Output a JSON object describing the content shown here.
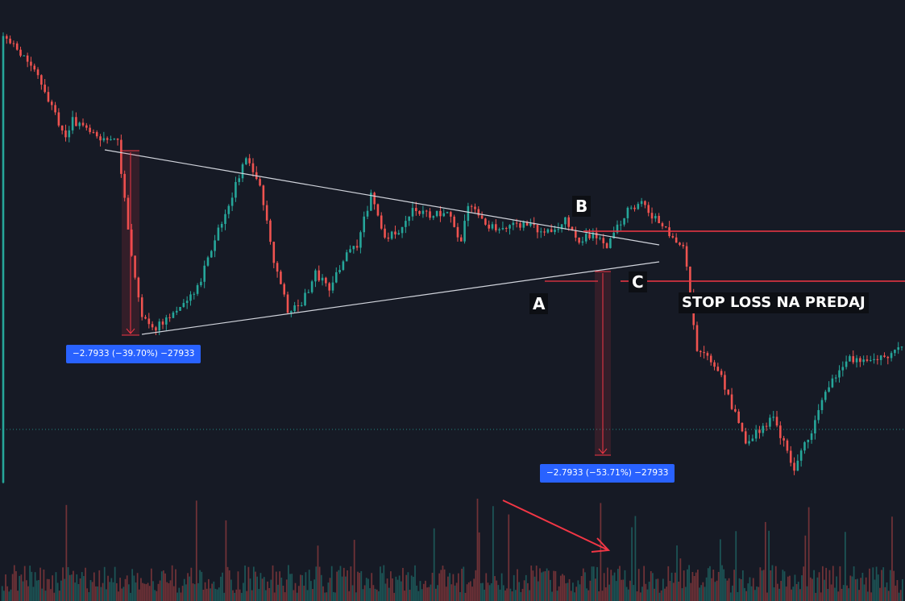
{
  "colors": {
    "background": "#161a25",
    "up": "#26a69a",
    "down": "#ef5350",
    "trendline": "#d1d4dc",
    "level": "#f23645",
    "label_bg": "#2962ff",
    "annotation_bg": "#0d0f14",
    "annotation_text": "#ffffff"
  },
  "annotations": {
    "point_a": "A",
    "point_b": "B",
    "point_c": "C",
    "stop_loss": "STOP LOSS NA PREDAJ"
  },
  "measurements": [
    {
      "text": "−2.7933 (−39.70%) −27933",
      "change": -2.7933,
      "percent": -39.7,
      "ticks": -27933
    },
    {
      "text": "−2.7933 (−53.71%) −27933",
      "change": -2.7933,
      "percent": -53.71,
      "ticks": -27933
    }
  ],
  "chart_data": {
    "type": "candlestick",
    "title": "",
    "xlabel": "",
    "ylabel": "",
    "grid": false,
    "candles": 260,
    "price_path": [
      [
        0,
        0.05
      ],
      [
        6,
        0.09
      ],
      [
        12,
        0.16
      ],
      [
        18,
        0.26
      ],
      [
        20,
        0.22
      ],
      [
        26,
        0.25
      ],
      [
        33,
        0.26
      ],
      [
        36,
        0.44
      ],
      [
        40,
        0.62
      ],
      [
        44,
        0.64
      ],
      [
        50,
        0.6
      ],
      [
        56,
        0.56
      ],
      [
        62,
        0.44
      ],
      [
        66,
        0.37
      ],
      [
        70,
        0.29
      ],
      [
        74,
        0.35
      ],
      [
        78,
        0.5
      ],
      [
        82,
        0.6
      ],
      [
        86,
        0.59
      ],
      [
        90,
        0.53
      ],
      [
        94,
        0.56
      ],
      [
        98,
        0.5
      ],
      [
        102,
        0.47
      ],
      [
        106,
        0.37
      ],
      [
        110,
        0.46
      ],
      [
        114,
        0.44
      ],
      [
        118,
        0.4
      ],
      [
        124,
        0.41
      ],
      [
        128,
        0.4
      ],
      [
        132,
        0.47
      ],
      [
        134,
        0.39
      ],
      [
        138,
        0.42
      ],
      [
        142,
        0.44
      ],
      [
        150,
        0.43
      ],
      [
        158,
        0.45
      ],
      [
        162,
        0.42
      ],
      [
        166,
        0.46
      ],
      [
        170,
        0.45
      ],
      [
        174,
        0.47
      ],
      [
        180,
        0.4
      ],
      [
        184,
        0.39
      ],
      [
        192,
        0.45
      ],
      [
        196,
        0.47
      ],
      [
        200,
        0.68
      ],
      [
        206,
        0.72
      ],
      [
        214,
        0.87
      ],
      [
        222,
        0.82
      ],
      [
        228,
        0.92
      ],
      [
        234,
        0.83
      ],
      [
        238,
        0.75
      ],
      [
        244,
        0.7
      ],
      [
        252,
        0.7
      ],
      [
        260,
        0.68
      ]
    ],
    "patterns": [
      {
        "type": "symmetrical_triangle",
        "start_bar": 30,
        "end_bar": 189
      }
    ],
    "levels": [
      {
        "name": "upper",
        "from_bar": 167
      },
      {
        "name": "lower",
        "from_bar": 177
      }
    ],
    "volume": {
      "shown": true,
      "position": "bottom"
    },
    "arrow": {
      "points_to": "volume spike"
    }
  }
}
